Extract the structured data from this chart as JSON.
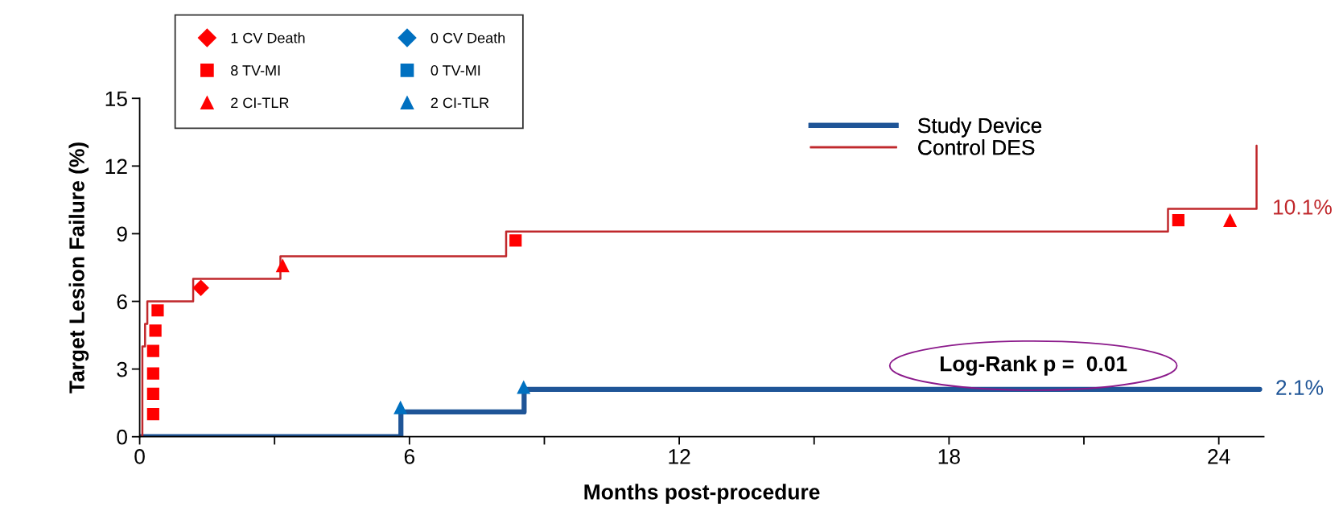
{
  "chart_data": {
    "type": "scatter",
    "xlabel": "Months post-procedure",
    "ylabel": "Target Lesion Failure (%)",
    "xlim": [
      0,
      25
    ],
    "ylim": [
      0,
      15
    ],
    "xticks": [
      0,
      {
        "value": 3,
        "label": null
      },
      6,
      {
        "value": 9,
        "label": null
      },
      12,
      {
        "value": 15,
        "label": null
      },
      18,
      {
        "value": 21,
        "label": null
      },
      24
    ],
    "yticks": [
      0,
      3,
      6,
      9,
      12,
      15
    ],
    "grid": false,
    "legend": "top",
    "annotations": [
      "Log-Rank p =  0.01"
    ],
    "series": [
      {
        "name": "Study Device",
        "type": "step",
        "color": "#1f5597",
        "x": [
          0,
          5.81,
          8.55,
          24.91
        ],
        "values": [
          0,
          1.1,
          2.1,
          2.1
        ],
        "value_labels": [
          null,
          null,
          null,
          "2.1%"
        ],
        "marker": "none"
      },
      {
        "name": "Control DES",
        "type": "step",
        "color": "#c0282c",
        "x": [
          0,
          0.06,
          0.12,
          0.17,
          1.19,
          3.13,
          8.15,
          22.87,
          24.84,
          24.84
        ],
        "values": [
          0,
          4.0,
          5.0,
          6.0,
          7.0,
          8.0,
          9.1,
          10.1,
          10.1,
          12.9
        ],
        "value_labels": [
          null,
          null,
          null,
          null,
          null,
          null,
          null,
          null,
          "10.1%",
          null
        ],
        "marker": "none"
      },
      {
        "name": "1 CV Death",
        "color": "#ff0000",
        "marker": "diamond",
        "x": [
          1.36
        ],
        "values": [
          6.6
        ]
      },
      {
        "name": "8 TV-MI",
        "color": "#ff0000",
        "marker": "square",
        "x": [
          0.3,
          0.3,
          0.3,
          0.3,
          0.35,
          0.4,
          8.36,
          23.1
        ],
        "values": [
          1.0,
          1.9,
          2.8,
          3.8,
          4.7,
          5.6,
          8.7,
          9.6
        ]
      },
      {
        "name": "2 CI-TLR",
        "color": "#ff0000",
        "marker": "triangle",
        "x": [
          3.18,
          24.25
        ],
        "values": [
          7.6,
          9.6
        ]
      },
      {
        "name": "0 CV Death",
        "color": "#0070c0",
        "marker": "diamond"
      },
      {
        "name": "0 TV-MI",
        "color": "#0070c0",
        "marker": "square"
      },
      {
        "name": "2 CI-TLR",
        "color": "#0070c0",
        "marker": "triangle",
        "x": [
          5.8,
          8.54
        ],
        "values": [
          1.3,
          2.2
        ]
      }
    ]
  }
}
